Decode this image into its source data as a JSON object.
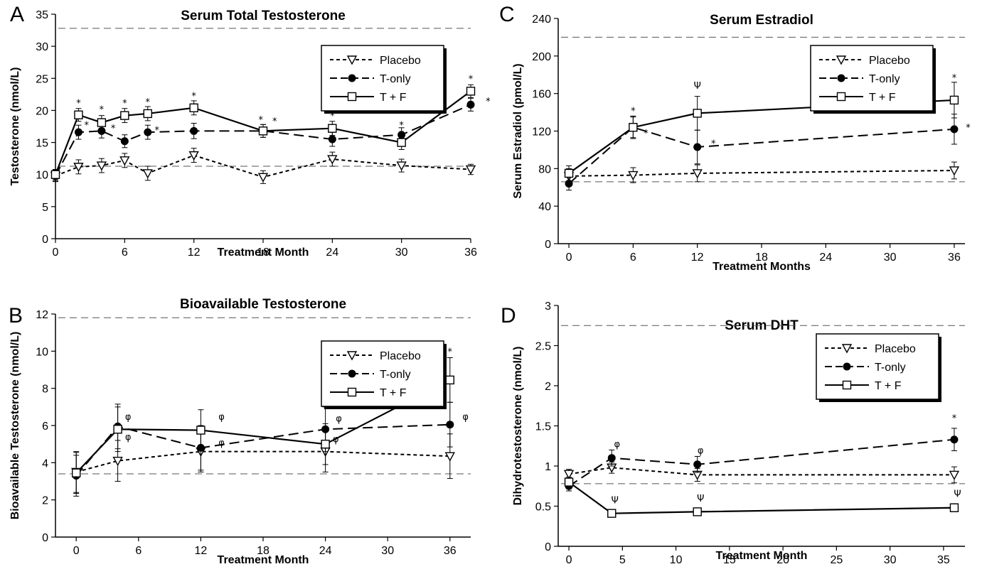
{
  "chart_data": [
    {
      "panel": "A",
      "type": "line",
      "title": "Serum Total Testosterone",
      "xlabel": "Treatment Month",
      "ylabel": "Testosterone (nmol/L)",
      "xlim": [
        0,
        36
      ],
      "ylim": [
        0,
        35
      ],
      "xticks": [
        0,
        6,
        12,
        18,
        24,
        30,
        36
      ],
      "yticks": [
        0,
        5,
        10,
        15,
        20,
        25,
        30,
        35
      ],
      "legend": "top-right",
      "reference_lines": [
        32.8,
        11.3
      ],
      "series": [
        {
          "name": "Placebo",
          "style": "dotted",
          "marker": "triangle-down",
          "x": [
            0,
            2,
            4,
            6,
            8,
            12,
            18,
            24,
            30,
            36
          ],
          "y": [
            9.8,
            11.2,
            11.4,
            12.2,
            10.2,
            13.0,
            9.6,
            12.4,
            11.4,
            10.8
          ],
          "err": [
            0.9,
            1.1,
            1.1,
            1.1,
            1.1,
            1.1,
            1.0,
            1.1,
            1.0,
            0.8
          ]
        },
        {
          "name": "T-only",
          "style": "dashed",
          "marker": "circle",
          "x": [
            0,
            2,
            4,
            6,
            8,
            12,
            18,
            24,
            30,
            36
          ],
          "y": [
            9.8,
            16.6,
            16.8,
            15.2,
            16.6,
            16.8,
            16.8,
            15.5,
            16.2,
            20.9
          ],
          "err": [
            0.8,
            1.1,
            1.1,
            1.0,
            1.1,
            1.2,
            1.0,
            1.1,
            1.1,
            1.0
          ]
        },
        {
          "name": "T + F",
          "style": "solid",
          "marker": "square",
          "x": [
            0,
            2,
            4,
            6,
            8,
            12,
            18,
            24,
            30,
            36
          ],
          "y": [
            10.0,
            19.3,
            18.1,
            19.2,
            19.5,
            20.4,
            16.8,
            17.2,
            15.0,
            23.0
          ],
          "err": [
            0.8,
            1.0,
            1.1,
            1.1,
            1.1,
            1.1,
            1.0,
            1.1,
            1.1,
            1.0
          ]
        }
      ],
      "annotations": [
        {
          "text": "*",
          "x": 2,
          "y": 21.2
        },
        {
          "text": "*",
          "x": 2.7,
          "y": 17.8
        },
        {
          "text": "*",
          "x": 4,
          "y": 20.2
        },
        {
          "text": "*",
          "x": 5,
          "y": 17.3
        },
        {
          "text": "*",
          "x": 6,
          "y": 21.2
        },
        {
          "text": "*",
          "x": 8,
          "y": 21.4
        },
        {
          "text": "*",
          "x": 8.8,
          "y": 17.0
        },
        {
          "text": "*",
          "x": 12,
          "y": 22.3
        },
        {
          "text": "*",
          "x": 17.8,
          "y": 18.6
        },
        {
          "text": "*",
          "x": 19.0,
          "y": 18.4
        },
        {
          "text": "*",
          "x": 24,
          "y": 19.2
        },
        {
          "text": "*",
          "x": 30,
          "y": 17.8
        },
        {
          "text": "*",
          "x": 36,
          "y": 25.0
        },
        {
          "text": "*",
          "x": 37.5,
          "y": 21.5
        }
      ]
    },
    {
      "panel": "B",
      "type": "line",
      "title": "Bioavailable Testosterone",
      "xlabel": "Treatment Month",
      "ylabel": "Bioavailable Testosterone (nmol/L)",
      "xlim": [
        -2,
        38
      ],
      "ylim": [
        0,
        12
      ],
      "xticks": [
        0,
        6,
        12,
        18,
        24,
        30,
        36
      ],
      "yticks": [
        0,
        2,
        4,
        6,
        8,
        10,
        12
      ],
      "legend": "top-right",
      "reference_lines": [
        11.8,
        3.4
      ],
      "series": [
        {
          "name": "Placebo",
          "style": "dotted",
          "marker": "triangle-down",
          "x": [
            0,
            4,
            12,
            24,
            36
          ],
          "y": [
            3.5,
            4.1,
            4.6,
            4.6,
            4.35
          ],
          "err": [
            1.1,
            1.1,
            1.1,
            1.1,
            1.2
          ]
        },
        {
          "name": "T-only",
          "style": "dashed",
          "marker": "circle",
          "x": [
            0,
            4,
            12,
            24,
            36
          ],
          "y": [
            3.3,
            5.95,
            4.8,
            5.8,
            6.05
          ],
          "err": [
            1.1,
            1.2,
            1.2,
            1.2,
            1.2
          ]
        },
        {
          "name": "T + F",
          "style": "solid",
          "marker": "square",
          "x": [
            0,
            4,
            12,
            24,
            36
          ],
          "y": [
            3.45,
            5.8,
            5.75,
            5.0,
            8.45
          ],
          "err": [
            1.1,
            1.2,
            1.1,
            1.1,
            1.2
          ]
        }
      ],
      "annotations": [
        {
          "text": "φ",
          "x": 5,
          "y": 6.5
        },
        {
          "text": "φ",
          "x": 5,
          "y": 5.4
        },
        {
          "text": "φ",
          "x": 14,
          "y": 6.5
        },
        {
          "text": "φ",
          "x": 14,
          "y": 5.1
        },
        {
          "text": "φ",
          "x": 25.3,
          "y": 6.4
        },
        {
          "text": "φ",
          "x": 25,
          "y": 5.3
        },
        {
          "text": "φ",
          "x": 37.5,
          "y": 6.5
        },
        {
          "text": "*",
          "x": 36,
          "y": 10.0
        }
      ]
    },
    {
      "panel": "C",
      "type": "line",
      "title": "Serum Estradiol",
      "xlabel": "Treatment Months",
      "ylabel": "Serum Estradiol (pmol/L)",
      "xlim": [
        -1,
        37
      ],
      "ylim": [
        0,
        240
      ],
      "xticks": [
        0,
        6,
        12,
        18,
        24,
        30,
        36
      ],
      "yticks": [
        0,
        40,
        80,
        120,
        160,
        200,
        240
      ],
      "legend": "top-right",
      "reference_lines": [
        220,
        66
      ],
      "series": [
        {
          "name": "Placebo",
          "style": "dotted",
          "marker": "triangle-down",
          "x": [
            0,
            6,
            12,
            36
          ],
          "y": [
            72,
            73,
            75,
            78
          ],
          "err": [
            8,
            8,
            9,
            9
          ]
        },
        {
          "name": "T-only",
          "style": "dashed",
          "marker": "circle",
          "x": [
            0,
            6,
            12,
            36
          ],
          "y": [
            64,
            124,
            103,
            122
          ],
          "err": [
            7,
            11,
            18,
            16
          ]
        },
        {
          "name": "T + F",
          "style": "solid",
          "marker": "square",
          "x": [
            0,
            6,
            12,
            36
          ],
          "y": [
            75,
            124,
            139,
            153
          ],
          "err": [
            8,
            12,
            18,
            19
          ]
        }
      ],
      "annotations": [
        {
          "text": "*",
          "x": 6,
          "y": 142
        },
        {
          "text": "*",
          "x": 7.2,
          "y": 118
        },
        {
          "text": "Ψ",
          "x": 12,
          "y": 169
        },
        {
          "text": "*",
          "x": 13.5,
          "y": 107
        },
        {
          "text": "*",
          "x": 36,
          "y": 177
        },
        {
          "text": "*",
          "x": 37.3,
          "y": 124
        }
      ]
    },
    {
      "panel": "D",
      "type": "line",
      "title": "Serum DHT",
      "xlabel": "Treatment Month",
      "ylabel": "Dihydrotestosterone (nmol/L)",
      "xlim": [
        -1,
        37
      ],
      "ylim": [
        0,
        3
      ],
      "xticks": [
        0,
        5,
        10,
        15,
        20,
        25,
        30,
        35
      ],
      "yticks": [
        0,
        0.5,
        1,
        1.5,
        2,
        2.5,
        3
      ],
      "legend": "top-right",
      "reference_lines": [
        2.75,
        0.78
      ],
      "series": [
        {
          "name": "Placebo",
          "style": "dotted",
          "marker": "triangle-down",
          "x": [
            0,
            4,
            12,
            36
          ],
          "y": [
            0.9,
            0.98,
            0.89,
            0.89
          ],
          "err": [
            0.06,
            0.07,
            0.08,
            0.1
          ]
        },
        {
          "name": "T-only",
          "style": "dashed",
          "marker": "circle",
          "x": [
            0,
            4,
            12,
            36
          ],
          "y": [
            0.75,
            1.1,
            1.02,
            1.33
          ],
          "err": [
            0.06,
            0.1,
            0.1,
            0.14
          ]
        },
        {
          "name": "T + F",
          "style": "solid",
          "marker": "square",
          "x": [
            0,
            4,
            12,
            36
          ],
          "y": [
            0.8,
            0.41,
            0.43,
            0.48
          ],
          "err": [
            0.06,
            0.04,
            0.04,
            0.05
          ]
        }
      ],
      "annotations": [
        {
          "text": "φ",
          "x": 4.5,
          "y": 1.28
        },
        {
          "text": "φ",
          "x": 12.3,
          "y": 1.2
        },
        {
          "text": "*",
          "x": 36,
          "y": 1.6
        },
        {
          "text": "Ψ",
          "x": 4.3,
          "y": 0.58
        },
        {
          "text": "Ψ",
          "x": 12.3,
          "y": 0.6
        },
        {
          "text": "Ψ",
          "x": 36.3,
          "y": 0.66
        }
      ]
    }
  ]
}
